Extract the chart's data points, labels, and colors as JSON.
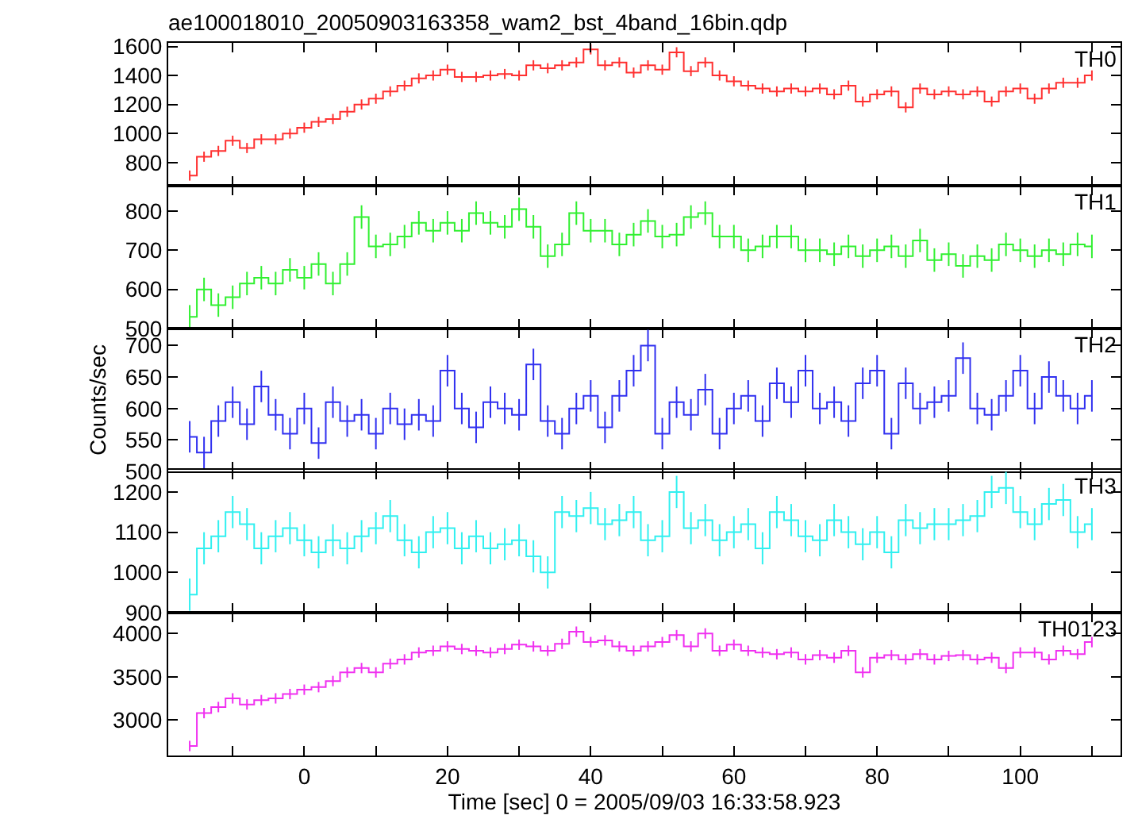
{
  "chart_data": [
    {
      "type": "step",
      "title": "ae100018010_20050903163358_wam2_bst_4band_16bin.qdp",
      "tick_labels": "y",
      "xlim": [
        -19,
        114
      ],
      "xticks": [
        {
          "value": -10,
          "label": null
        },
        {
          "value": 0,
          "label": null
        },
        {
          "value": 10,
          "label": null
        },
        {
          "value": 20,
          "label": null
        },
        {
          "value": 30,
          "label": null
        },
        {
          "value": 40,
          "label": null
        },
        {
          "value": 50,
          "label": null
        },
        {
          "value": 60,
          "label": null
        },
        {
          "value": 70,
          "label": null
        },
        {
          "value": 80,
          "label": null
        },
        {
          "value": 90,
          "label": null
        },
        {
          "value": 100,
          "label": null
        },
        {
          "value": 110,
          "label": null
        }
      ],
      "ylim": [
        640,
        1625
      ],
      "yticks": [
        800,
        1000,
        1200,
        1400,
        1600
      ],
      "x": [
        -16,
        -14,
        -12,
        -10,
        -8,
        -6,
        -4,
        -2,
        0,
        2,
        4,
        6,
        8,
        10,
        12,
        14,
        16,
        18,
        20,
        22,
        24,
        26,
        28,
        30,
        32,
        34,
        36,
        38,
        40,
        42,
        44,
        46,
        48,
        50,
        52,
        54,
        56,
        58,
        60,
        62,
        64,
        66,
        68,
        70,
        72,
        74,
        76,
        78,
        80,
        82,
        84,
        86,
        88,
        90,
        92,
        94,
        96,
        98,
        100,
        102,
        104,
        106,
        108,
        110
      ],
      "series": [
        {
          "name": "TH0",
          "color": "#ff3030",
          "values": [
            710,
            840,
            880,
            950,
            900,
            960,
            960,
            1000,
            1040,
            1080,
            1100,
            1150,
            1200,
            1240,
            1290,
            1330,
            1380,
            1400,
            1440,
            1390,
            1390,
            1400,
            1410,
            1400,
            1470,
            1450,
            1470,
            1490,
            1580,
            1470,
            1490,
            1420,
            1470,
            1440,
            1560,
            1430,
            1490,
            1400,
            1360,
            1330,
            1310,
            1290,
            1310,
            1290,
            1310,
            1270,
            1330,
            1220,
            1270,
            1290,
            1180,
            1310,
            1270,
            1290,
            1270,
            1290,
            1220,
            1290,
            1310,
            1240,
            1310,
            1350,
            1350,
            1400
          ],
          "errors": [
            35,
            35,
            35,
            35,
            35,
            35,
            35,
            35,
            35,
            35,
            35,
            35,
            35,
            35,
            35,
            35,
            35,
            35,
            35,
            35,
            35,
            35,
            35,
            35,
            35,
            35,
            35,
            35,
            35,
            35,
            35,
            35,
            35,
            35,
            35,
            35,
            35,
            35,
            35,
            35,
            35,
            35,
            35,
            35,
            35,
            35,
            35,
            35,
            35,
            35,
            35,
            35,
            35,
            35,
            35,
            35,
            35,
            35,
            35,
            35,
            35,
            35,
            35,
            35
          ]
        }
      ]
    },
    {
      "type": "step",
      "tick_labels": "y",
      "xlim": [
        -19,
        114
      ],
      "xticks": [
        {
          "value": -10,
          "label": null
        },
        {
          "value": 0,
          "label": null
        },
        {
          "value": 10,
          "label": null
        },
        {
          "value": 20,
          "label": null
        },
        {
          "value": 30,
          "label": null
        },
        {
          "value": 40,
          "label": null
        },
        {
          "value": 50,
          "label": null
        },
        {
          "value": 60,
          "label": null
        },
        {
          "value": 70,
          "label": null
        },
        {
          "value": 80,
          "label": null
        },
        {
          "value": 90,
          "label": null
        },
        {
          "value": 100,
          "label": null
        },
        {
          "value": 110,
          "label": null
        }
      ],
      "ylim": [
        500,
        865
      ],
      "yticks": [
        500,
        600,
        700,
        800
      ],
      "x": [
        -16,
        -14,
        -12,
        -10,
        -8,
        -6,
        -4,
        -2,
        0,
        2,
        4,
        6,
        8,
        10,
        12,
        14,
        16,
        18,
        20,
        22,
        24,
        26,
        28,
        30,
        32,
        34,
        36,
        38,
        40,
        42,
        44,
        46,
        48,
        50,
        52,
        54,
        56,
        58,
        60,
        62,
        64,
        66,
        68,
        70,
        72,
        74,
        76,
        78,
        80,
        82,
        84,
        86,
        88,
        90,
        92,
        94,
        96,
        98,
        100,
        102,
        104,
        106,
        108,
        110
      ],
      "series": [
        {
          "name": "TH1",
          "color": "#30f030",
          "values": [
            530,
            600,
            560,
            580,
            615,
            630,
            615,
            650,
            630,
            665,
            615,
            665,
            785,
            710,
            715,
            735,
            770,
            750,
            770,
            750,
            795,
            770,
            760,
            805,
            760,
            685,
            715,
            795,
            750,
            750,
            715,
            740,
            775,
            735,
            740,
            785,
            795,
            735,
            735,
            700,
            710,
            735,
            735,
            700,
            700,
            690,
            710,
            685,
            700,
            710,
            685,
            725,
            675,
            690,
            660,
            685,
            675,
            715,
            700,
            685,
            700,
            690,
            715,
            710
          ],
          "errors": [
            30,
            30,
            30,
            30,
            30,
            30,
            30,
            30,
            30,
            30,
            30,
            30,
            30,
            30,
            30,
            30,
            30,
            30,
            30,
            30,
            30,
            30,
            30,
            30,
            30,
            30,
            30,
            30,
            30,
            30,
            30,
            30,
            30,
            30,
            30,
            30,
            30,
            30,
            30,
            30,
            30,
            30,
            30,
            30,
            30,
            30,
            30,
            30,
            30,
            30,
            30,
            30,
            30,
            30,
            30,
            30,
            30,
            30,
            30,
            30,
            30,
            30,
            30,
            30
          ]
        }
      ]
    },
    {
      "type": "step",
      "ylabel": "Counts/sec",
      "tick_labels": "y",
      "xlim": [
        -19,
        114
      ],
      "xticks": [
        {
          "value": -10,
          "label": null
        },
        {
          "value": 0,
          "label": null
        },
        {
          "value": 10,
          "label": null
        },
        {
          "value": 20,
          "label": null
        },
        {
          "value": 30,
          "label": null
        },
        {
          "value": 40,
          "label": null
        },
        {
          "value": 50,
          "label": null
        },
        {
          "value": 60,
          "label": null
        },
        {
          "value": 70,
          "label": null
        },
        {
          "value": 80,
          "label": null
        },
        {
          "value": 90,
          "label": null
        },
        {
          "value": 100,
          "label": null
        },
        {
          "value": 110,
          "label": null
        }
      ],
      "ylim": [
        500,
        727
      ],
      "yticks": [
        500,
        550,
        600,
        650,
        700
      ],
      "x": [
        -16,
        -14,
        -12,
        -10,
        -8,
        -6,
        -4,
        -2,
        0,
        2,
        4,
        6,
        8,
        10,
        12,
        14,
        16,
        18,
        20,
        22,
        24,
        26,
        28,
        30,
        32,
        34,
        36,
        38,
        40,
        42,
        44,
        46,
        48,
        50,
        52,
        54,
        56,
        58,
        60,
        62,
        64,
        66,
        68,
        70,
        72,
        74,
        76,
        78,
        80,
        82,
        84,
        86,
        88,
        90,
        92,
        94,
        96,
        98,
        100,
        102,
        104,
        106,
        108,
        110
      ],
      "series": [
        {
          "name": "TH2",
          "color": "#3030f0",
          "values": [
            555,
            530,
            580,
            610,
            575,
            635,
            590,
            560,
            600,
            545,
            610,
            580,
            590,
            560,
            600,
            575,
            590,
            580,
            660,
            600,
            570,
            610,
            600,
            590,
            670,
            580,
            560,
            600,
            620,
            570,
            620,
            660,
            700,
            560,
            610,
            590,
            630,
            560,
            600,
            620,
            580,
            640,
            610,
            660,
            600,
            610,
            580,
            640,
            660,
            560,
            640,
            600,
            610,
            620,
            680,
            600,
            590,
            620,
            660,
            600,
            650,
            620,
            600,
            620
          ],
          "errors": [
            25,
            25,
            25,
            25,
            25,
            25,
            25,
            25,
            25,
            25,
            25,
            25,
            25,
            25,
            25,
            25,
            25,
            25,
            25,
            25,
            25,
            25,
            25,
            25,
            25,
            25,
            25,
            25,
            25,
            25,
            25,
            25,
            25,
            25,
            25,
            25,
            25,
            25,
            25,
            25,
            25,
            25,
            25,
            25,
            25,
            25,
            25,
            25,
            25,
            25,
            25,
            25,
            25,
            25,
            25,
            25,
            25,
            25,
            25,
            25,
            25,
            25,
            25,
            25
          ]
        }
      ]
    },
    {
      "type": "step",
      "tick_labels": "y",
      "xlim": [
        -19,
        114
      ],
      "xticks": [
        {
          "value": -10,
          "label": null
        },
        {
          "value": 0,
          "label": null
        },
        {
          "value": 10,
          "label": null
        },
        {
          "value": 20,
          "label": null
        },
        {
          "value": 30,
          "label": null
        },
        {
          "value": 40,
          "label": null
        },
        {
          "value": 50,
          "label": null
        },
        {
          "value": 60,
          "label": null
        },
        {
          "value": 70,
          "label": null
        },
        {
          "value": 80,
          "label": null
        },
        {
          "value": 90,
          "label": null
        },
        {
          "value": 100,
          "label": null
        },
        {
          "value": 110,
          "label": null
        }
      ],
      "ylim": [
        900,
        1255
      ],
      "yticks": [
        900,
        1000,
        1100,
        1200
      ],
      "x": [
        -16,
        -14,
        -12,
        -10,
        -8,
        -6,
        -4,
        -2,
        0,
        2,
        4,
        6,
        8,
        10,
        12,
        14,
        16,
        18,
        20,
        22,
        24,
        26,
        28,
        30,
        32,
        34,
        36,
        38,
        40,
        42,
        44,
        46,
        48,
        50,
        52,
        54,
        56,
        58,
        60,
        62,
        64,
        66,
        68,
        70,
        72,
        74,
        76,
        78,
        80,
        82,
        84,
        86,
        88,
        90,
        92,
        94,
        96,
        98,
        100,
        102,
        104,
        106,
        108,
        110
      ],
      "series": [
        {
          "name": "TH3",
          "color": "#30f0f0",
          "values": [
            945,
            1060,
            1090,
            1150,
            1120,
            1060,
            1090,
            1110,
            1080,
            1050,
            1080,
            1060,
            1090,
            1110,
            1140,
            1080,
            1050,
            1100,
            1110,
            1060,
            1090,
            1060,
            1070,
            1080,
            1040,
            1000,
            1150,
            1140,
            1160,
            1120,
            1130,
            1150,
            1080,
            1090,
            1200,
            1110,
            1130,
            1080,
            1100,
            1120,
            1060,
            1150,
            1130,
            1090,
            1080,
            1130,
            1100,
            1070,
            1100,
            1050,
            1130,
            1110,
            1120,
            1120,
            1130,
            1140,
            1200,
            1210,
            1150,
            1120,
            1170,
            1180,
            1100,
            1120
          ],
          "errors": [
            40,
            40,
            40,
            40,
            40,
            40,
            40,
            40,
            40,
            40,
            40,
            40,
            40,
            40,
            40,
            40,
            40,
            40,
            40,
            40,
            40,
            40,
            40,
            40,
            40,
            40,
            40,
            40,
            40,
            40,
            40,
            40,
            40,
            40,
            40,
            40,
            40,
            40,
            40,
            40,
            40,
            40,
            40,
            40,
            40,
            40,
            40,
            40,
            40,
            40,
            40,
            40,
            40,
            40,
            40,
            40,
            40,
            40,
            40,
            40,
            40,
            40,
            40,
            40
          ]
        }
      ]
    },
    {
      "type": "step",
      "xlabel": "Time [sec] 0 = 2005/09/03 16:33:58.923",
      "xlim": [
        -19,
        114
      ],
      "xticks": [
        {
          "value": -10,
          "label": null
        },
        0,
        {
          "value": 10,
          "label": null
        },
        20,
        {
          "value": 30,
          "label": null
        },
        40,
        {
          "value": 50,
          "label": null
        },
        60,
        {
          "value": 70,
          "label": null
        },
        80,
        {
          "value": 90,
          "label": null
        },
        100,
        {
          "value": 110,
          "label": null
        }
      ],
      "ylim": [
        2590,
        4240
      ],
      "yticks": [
        3000,
        3500,
        4000
      ],
      "x": [
        -16,
        -14,
        -12,
        -10,
        -8,
        -6,
        -4,
        -2,
        0,
        2,
        4,
        6,
        8,
        10,
        12,
        14,
        16,
        18,
        20,
        22,
        24,
        26,
        28,
        30,
        32,
        34,
        36,
        38,
        40,
        42,
        44,
        46,
        48,
        50,
        52,
        54,
        56,
        58,
        60,
        62,
        64,
        66,
        68,
        70,
        72,
        74,
        76,
        78,
        80,
        82,
        84,
        86,
        88,
        90,
        92,
        94,
        96,
        98,
        100,
        102,
        104,
        106,
        108,
        110
      ],
      "series": [
        {
          "name": "TH0123",
          "color": "#f030f0",
          "values": [
            2700,
            3080,
            3150,
            3250,
            3180,
            3230,
            3250,
            3300,
            3350,
            3380,
            3450,
            3550,
            3600,
            3550,
            3650,
            3700,
            3780,
            3800,
            3850,
            3820,
            3800,
            3780,
            3820,
            3870,
            3850,
            3800,
            3880,
            4020,
            3900,
            3920,
            3850,
            3800,
            3850,
            3900,
            3980,
            3850,
            4000,
            3800,
            3870,
            3800,
            3780,
            3760,
            3780,
            3700,
            3750,
            3720,
            3800,
            3550,
            3720,
            3750,
            3700,
            3760,
            3700,
            3740,
            3750,
            3700,
            3720,
            3600,
            3780,
            3780,
            3700,
            3800,
            3760,
            3900
          ],
          "errors": [
            60,
            60,
            60,
            60,
            60,
            60,
            60,
            60,
            60,
            60,
            60,
            60,
            60,
            60,
            60,
            60,
            60,
            60,
            60,
            60,
            60,
            60,
            60,
            60,
            60,
            60,
            60,
            60,
            60,
            60,
            60,
            60,
            60,
            60,
            60,
            60,
            60,
            60,
            60,
            60,
            60,
            60,
            60,
            60,
            60,
            60,
            60,
            60,
            60,
            60,
            60,
            60,
            60,
            60,
            60,
            60,
            60,
            60,
            60,
            60,
            60,
            60,
            60,
            60
          ]
        }
      ]
    }
  ]
}
